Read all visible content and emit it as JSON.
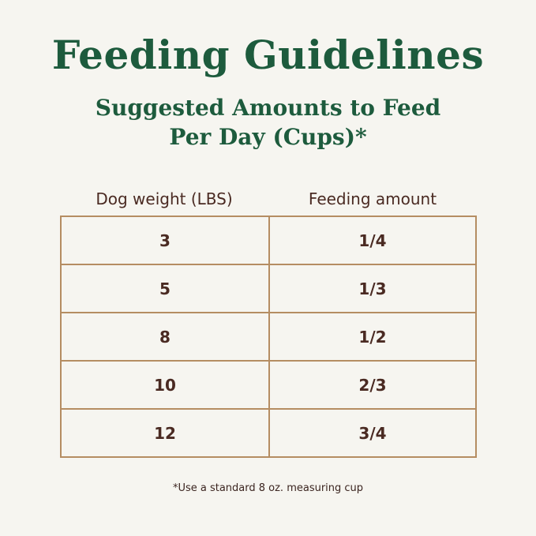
{
  "header": {
    "title": "Feeding Guidelines",
    "subtitle": [
      "Suggested Amounts to Feed",
      "Per Day (Cups)*"
    ]
  },
  "table": {
    "columns": [
      "Dog weight (LBS)",
      "Feeding amount"
    ],
    "rows": [
      [
        "3",
        "1/4"
      ],
      [
        "5",
        "1/3"
      ],
      [
        "8",
        "1/2"
      ],
      [
        "10",
        "2/3"
      ],
      [
        "12",
        "3/4"
      ]
    ]
  },
  "footnote": "*Use a standard 8 oz. measuring cup"
}
